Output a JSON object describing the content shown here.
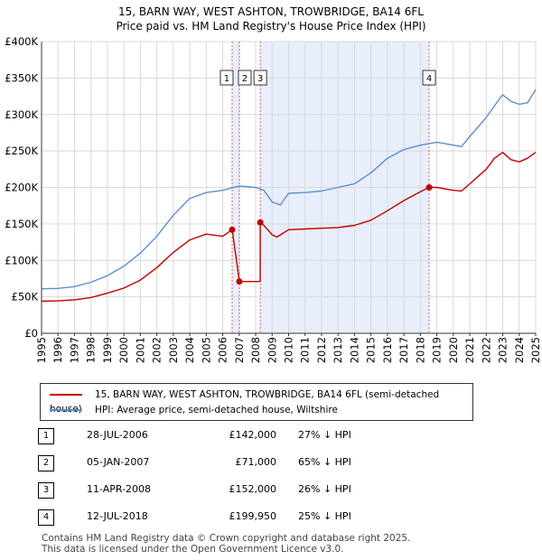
{
  "header": {
    "title_line1": "15, BARN WAY, WEST ASHTON, TROWBRIDGE, BA14 6FL",
    "title_line2": "Price paid vs. HM Land Registry's House Price Index (HPI)"
  },
  "colors": {
    "property": "#c00000",
    "hpi": "#5b8fd0",
    "shade": "#e8eefb",
    "grid": "#d9d9d9",
    "marker_line": "#e06060"
  },
  "legend": {
    "property_label": "15, BARN WAY, WEST ASHTON, TROWBRIDGE, BA14 6FL (semi-detached house)",
    "hpi_label": "HPI: Average price, semi-detached house, Wiltshire"
  },
  "sales": [
    {
      "num": "1",
      "date": "28-JUL-2006",
      "price": "£142,000",
      "hpi": "27% ↓ HPI"
    },
    {
      "num": "2",
      "date": "05-JAN-2007",
      "price": "£71,000",
      "hpi": "65% ↓ HPI"
    },
    {
      "num": "3",
      "date": "11-APR-2008",
      "price": "£152,000",
      "hpi": "26% ↓ HPI"
    },
    {
      "num": "4",
      "date": "12-JUL-2018",
      "price": "£199,950",
      "hpi": "25% ↓ HPI"
    }
  ],
  "footer": {
    "line1": "Contains HM Land Registry data © Crown copyright and database right 2025.",
    "line2": "This data is licensed under the Open Government Licence v3.0."
  },
  "chart_data": {
    "type": "line",
    "title": "15, BARN WAY, WEST ASHTON, TROWBRIDGE, BA14 6FL",
    "subtitle": "Price paid vs. HM Land Registry's House Price Index (HPI)",
    "xlabel": "",
    "ylabel": "",
    "xlim": [
      1995,
      2025
    ],
    "ylim": [
      0,
      400000
    ],
    "x_ticks": [
      1995,
      1996,
      1997,
      1998,
      1999,
      2000,
      2001,
      2002,
      2003,
      2004,
      2005,
      2006,
      2007,
      2008,
      2009,
      2010,
      2011,
      2012,
      2013,
      2014,
      2015,
      2016,
      2017,
      2018,
      2019,
      2020,
      2021,
      2022,
      2023,
      2024,
      2025
    ],
    "y_ticks": [
      0,
      50000,
      100000,
      150000,
      200000,
      250000,
      300000,
      350000,
      400000
    ],
    "y_tick_labels": [
      "£0",
      "£50K",
      "£100K",
      "£150K",
      "£200K",
      "£250K",
      "£300K",
      "£350K",
      "£400K"
    ],
    "grid": true,
    "shaded_regions": [
      [
        2006.57,
        2007.01
      ],
      [
        2008.28,
        2018.53
      ]
    ],
    "sale_markers": [
      {
        "label": "1",
        "x": 2006.57,
        "y": 142000
      },
      {
        "label": "2",
        "x": 2007.01,
        "y": 71000
      },
      {
        "label": "3",
        "x": 2008.28,
        "y": 152000
      },
      {
        "label": "4",
        "x": 2018.53,
        "y": 199950
      }
    ],
    "series": [
      {
        "name": "15, BARN WAY, WEST ASHTON, TROWBRIDGE, BA14 6FL (semi-detached house)",
        "x": [
          1995,
          1996,
          1997,
          1998,
          1999,
          2000,
          2001,
          2002,
          2003,
          2004,
          2005,
          2006,
          2006.57,
          2006.58,
          2007.01,
          2007.02,
          2008.27,
          2008.28,
          2008.5,
          2009,
          2009.3,
          2010,
          2011,
          2012,
          2013,
          2014,
          2015,
          2016,
          2017,
          2018,
          2018.53,
          2019,
          2020,
          2020.5,
          2021,
          2022,
          2022.5,
          2023,
          2023.5,
          2024,
          2024.5,
          2025
        ],
        "values": [
          44000,
          44500,
          46000,
          49000,
          55000,
          62000,
          73000,
          90000,
          111000,
          128000,
          136000,
          133000,
          142000,
          142000,
          71000,
          71000,
          71000,
          152000,
          148000,
          135000,
          132000,
          142000,
          143000,
          144000,
          145000,
          148000,
          155000,
          168000,
          182000,
          194000,
          199950,
          200000,
          196000,
          195000,
          205000,
          225000,
          240000,
          248000,
          238000,
          235000,
          240000,
          248000
        ]
      },
      {
        "name": "HPI: Average price, semi-detached house, Wiltshire",
        "x": [
          1995,
          1996,
          1997,
          1998,
          1999,
          2000,
          2001,
          2002,
          2003,
          2004,
          2005,
          2006,
          2007,
          2008,
          2008.5,
          2009,
          2009.5,
          2010,
          2011,
          2012,
          2013,
          2014,
          2015,
          2016,
          2017,
          2018,
          2019,
          2020,
          2020.5,
          2021,
          2022,
          2022.5,
          2023,
          2023.5,
          2024,
          2024.5,
          2025
        ],
        "values": [
          61000,
          61500,
          64000,
          70000,
          79000,
          92000,
          110000,
          133000,
          162000,
          185000,
          193000,
          196000,
          202000,
          200000,
          196000,
          180000,
          176000,
          192000,
          193000,
          195000,
          200000,
          205000,
          220000,
          240000,
          252000,
          258000,
          262000,
          258000,
          256000,
          270000,
          296000,
          312000,
          327000,
          318000,
          314000,
          316000,
          334000
        ]
      }
    ]
  }
}
